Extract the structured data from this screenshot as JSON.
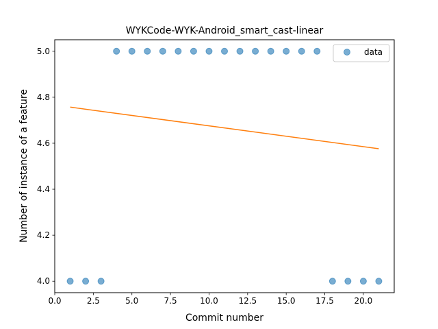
{
  "chart_data": {
    "type": "scatter",
    "title": "WYKCode-WYK-Android_smart_cast-linear",
    "xlabel": "Commit number",
    "ylabel": "Number of instance of a feature",
    "xlim": [
      0.0,
      22.0
    ],
    "ylim": [
      3.95,
      5.05
    ],
    "xticks": [
      0.0,
      2.5,
      5.0,
      7.5,
      10.0,
      12.5,
      15.0,
      17.5,
      20.0
    ],
    "xtick_labels": [
      "0.0",
      "2.5",
      "5.0",
      "7.5",
      "10.0",
      "12.5",
      "15.0",
      "17.5",
      "20.0"
    ],
    "yticks": [
      4.0,
      4.2,
      4.4,
      4.6,
      4.8,
      5.0
    ],
    "ytick_labels": [
      "4.0",
      "4.2",
      "4.4",
      "4.6",
      "4.8",
      "5.0"
    ],
    "grid": false,
    "legend": {
      "position": "top-right",
      "entries": [
        "data"
      ]
    },
    "series": [
      {
        "name": "data",
        "kind": "scatter",
        "color": "#1f77b4",
        "x": [
          1,
          2,
          3,
          4,
          5,
          6,
          7,
          8,
          9,
          10,
          11,
          12,
          13,
          14,
          15,
          16,
          17,
          18,
          19,
          20,
          21
        ],
        "y": [
          4,
          4,
          4,
          5,
          5,
          5,
          5,
          5,
          5,
          5,
          5,
          5,
          5,
          5,
          5,
          5,
          5,
          4,
          4,
          4,
          4
        ]
      },
      {
        "kind": "line",
        "color": "#ff7f0e",
        "x": [
          1,
          21
        ],
        "y": [
          4.757,
          4.576
        ]
      }
    ]
  }
}
